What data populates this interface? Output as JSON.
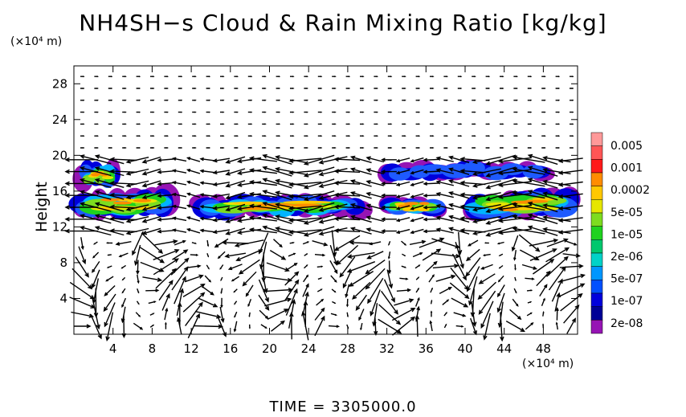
{
  "chart_data": {
    "type": "heatmap",
    "title": "NH4SH−s Cloud & Rain Mixing Ratio [kg/kg]",
    "ylabel": "Height",
    "y_unit": "(×10⁴ m)",
    "x_unit": "(×10⁴ m)",
    "xlim": [
      0,
      51.5
    ],
    "ylim": [
      0,
      30
    ],
    "x_ticks": [
      4,
      8,
      12,
      16,
      20,
      24,
      28,
      32,
      36,
      40,
      44,
      48
    ],
    "y_ticks": [
      4,
      8,
      12,
      16,
      20,
      24,
      28
    ],
    "colorbar": {
      "labels": [
        "0.005",
        "0.001",
        "0.0002",
        "5e-05",
        "1e-05",
        "2e-06",
        "5e-07",
        "1e-07",
        "2e-08"
      ],
      "colors": [
        "#ff9999",
        "#ff5555",
        "#ff1a1a",
        "#ff8c00",
        "#ffc800",
        "#e6e600",
        "#7ddc1f",
        "#1fd21f",
        "#00c86e",
        "#00d2c8",
        "#0096ff",
        "#0050ff",
        "#0000dc",
        "#000096",
        "#9614b4"
      ]
    },
    "cloud_bands": [
      {
        "x": [
          0,
          10.5
        ],
        "y": [
          12.5,
          16.5
        ]
      },
      {
        "x": [
          12,
          30
        ],
        "y": [
          12.8,
          15.8
        ]
      },
      {
        "x": [
          31.5,
          38
        ],
        "y": [
          13.0,
          15.5
        ]
      },
      {
        "x": [
          40,
          51.5
        ],
        "y": [
          12.5,
          16.5
        ]
      },
      {
        "x": [
          0.5,
          4.5
        ],
        "y": [
          16.0,
          19.5
        ]
      },
      {
        "x": [
          31,
          49
        ],
        "y": [
          17.0,
          19.5
        ]
      }
    ],
    "time": "TIME  =  3305000.0"
  }
}
